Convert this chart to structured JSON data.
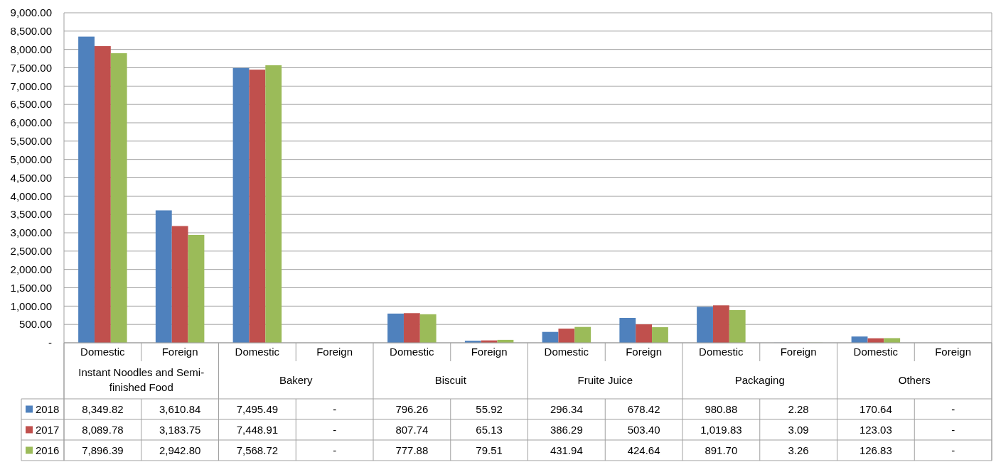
{
  "chart_data": {
    "type": "bar",
    "categories": [
      "Domestic",
      "Foreign",
      "Domestic",
      "Foreign",
      "Domestic",
      "Foreign",
      "Domestic",
      "Foreign",
      "Domestic",
      "Foreign",
      "Domestic",
      "Foreign"
    ],
    "annotations": [
      "Instant Noodles and Semi-finished Food",
      "Bakery",
      "Biscuit",
      "Fruite Juice",
      "Packaging",
      "Others"
    ],
    "series": [
      {
        "name": "2018",
        "color": "#4f81bd",
        "values": [
          8349.82,
          3610.84,
          7495.49,
          null,
          796.26,
          55.92,
          296.34,
          678.42,
          980.88,
          2.28,
          170.64,
          null
        ],
        "value_labels": [
          "8,349.82",
          "3,610.84",
          "7,495.49",
          "-",
          "796.26",
          "55.92",
          "296.34",
          "678.42",
          "980.88",
          "2.28",
          "170.64",
          "-"
        ]
      },
      {
        "name": "2017",
        "color": "#c0504d",
        "values": [
          8089.78,
          3183.75,
          7448.91,
          null,
          807.74,
          65.13,
          386.29,
          503.4,
          1019.83,
          3.09,
          123.03,
          null
        ],
        "value_labels": [
          "8,089.78",
          "3,183.75",
          "7,448.91",
          "-",
          "807.74",
          "65.13",
          "386.29",
          "503.40",
          "1,019.83",
          "3.09",
          "123.03",
          "-"
        ]
      },
      {
        "name": "2016",
        "color": "#9bbb59",
        "values": [
          7896.39,
          2942.8,
          7568.72,
          null,
          777.88,
          79.51,
          431.94,
          424.64,
          891.7,
          3.26,
          126.83,
          null
        ],
        "value_labels": [
          "7,896.39",
          "2,942.80",
          "7,568.72",
          "-",
          "777.88",
          "79.51",
          "431.94",
          "424.64",
          "891.70",
          "3.26",
          "126.83",
          "-"
        ]
      }
    ],
    "ylim": [
      0,
      9000
    ],
    "yticks": [
      {
        "value": 0,
        "label": "-"
      },
      {
        "value": 500,
        "label": "500.00"
      },
      {
        "value": 1000,
        "label": "1,000.00"
      },
      {
        "value": 1500,
        "label": "1,500.00"
      },
      {
        "value": 2000,
        "label": "2,000.00"
      },
      {
        "value": 2500,
        "label": "2,500.00"
      },
      {
        "value": 3000,
        "label": "3,000.00"
      },
      {
        "value": 3500,
        "label": "3,500.00"
      },
      {
        "value": 4000,
        "label": "4,000.00"
      },
      {
        "value": 4500,
        "label": "4,500.00"
      },
      {
        "value": 5000,
        "label": "5,000.00"
      },
      {
        "value": 5500,
        "label": "5,500.00"
      },
      {
        "value": 6000,
        "label": "6,000.00"
      },
      {
        "value": 6500,
        "label": "6,500.00"
      },
      {
        "value": 7000,
        "label": "7,000.00"
      },
      {
        "value": 7500,
        "label": "7,500.00"
      },
      {
        "value": 8000,
        "label": "8,000.00"
      },
      {
        "value": 8500,
        "label": "8,500.00"
      },
      {
        "value": 9000,
        "label": "9,000.00"
      }
    ],
    "grid": "y",
    "legend": "bottom left"
  }
}
